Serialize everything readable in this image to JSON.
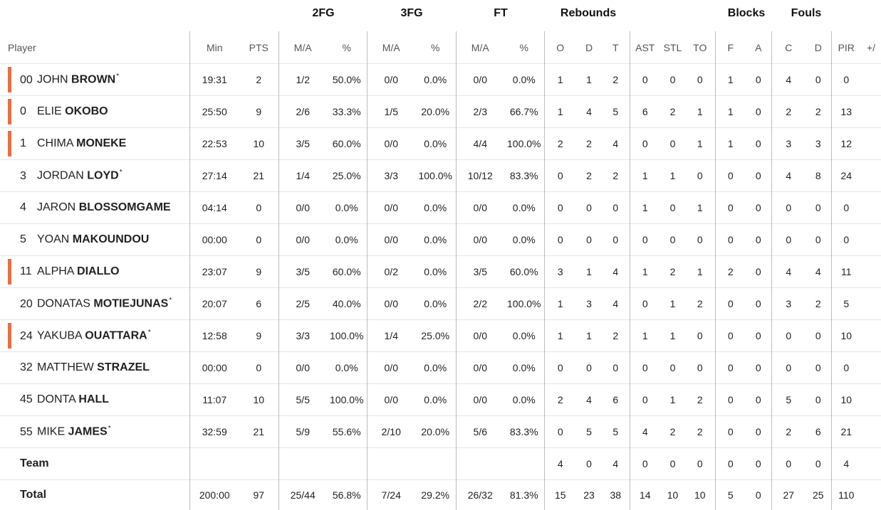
{
  "group_headers": {
    "fg2": "2FG",
    "fg3": "3FG",
    "ft": "FT",
    "rebounds": "Rebounds",
    "blocks": "Blocks",
    "fouls": "Fouls"
  },
  "columns": {
    "player": "Player",
    "min": "Min",
    "pts": "PTS",
    "fg2_ma": "M/A",
    "fg2_pct": "%",
    "fg3_ma": "M/A",
    "fg3_pct": "%",
    "ft_ma": "M/A",
    "ft_pct": "%",
    "reb_o": "O",
    "reb_d": "D",
    "reb_t": "T",
    "ast": "AST",
    "stl": "STL",
    "to": "TO",
    "blk_f": "F",
    "blk_a": "A",
    "foul_c": "C",
    "foul_d": "D",
    "pir": "PIR",
    "pm": "+/"
  },
  "accent_color": "#f26b3a",
  "players": [
    {
      "no": "00",
      "first": "JOHN",
      "last": "BROWN",
      "star": "*",
      "starter": true,
      "stats": [
        "19:31",
        "2",
        "1/2",
        "50.0%",
        "0/0",
        "0.0%",
        "0/0",
        "0.0%",
        "1",
        "1",
        "2",
        "0",
        "0",
        "0",
        "1",
        "0",
        "4",
        "0",
        "0"
      ]
    },
    {
      "no": "0",
      "first": "ELIE",
      "last": "OKOBO",
      "star": "",
      "starter": true,
      "stats": [
        "25:50",
        "9",
        "2/6",
        "33.3%",
        "1/5",
        "20.0%",
        "2/3",
        "66.7%",
        "1",
        "4",
        "5",
        "6",
        "2",
        "1",
        "1",
        "0",
        "2",
        "2",
        "13"
      ]
    },
    {
      "no": "1",
      "first": "CHIMA",
      "last": "MONEKE",
      "star": "",
      "starter": true,
      "stats": [
        "22:53",
        "10",
        "3/5",
        "60.0%",
        "0/0",
        "0.0%",
        "4/4",
        "100.0%",
        "2",
        "2",
        "4",
        "0",
        "0",
        "1",
        "1",
        "0",
        "3",
        "3",
        "12"
      ]
    },
    {
      "no": "3",
      "first": "JORDAN",
      "last": "LOYD",
      "star": "*",
      "starter": false,
      "stats": [
        "27:14",
        "21",
        "1/4",
        "25.0%",
        "3/3",
        "100.0%",
        "10/12",
        "83.3%",
        "0",
        "2",
        "2",
        "1",
        "1",
        "0",
        "0",
        "0",
        "4",
        "8",
        "24"
      ]
    },
    {
      "no": "4",
      "first": "JARON",
      "last": "BLOSSOMGAME",
      "star": "",
      "starter": false,
      "stats": [
        "04:14",
        "0",
        "0/0",
        "0.0%",
        "0/0",
        "0.0%",
        "0/0",
        "0.0%",
        "0",
        "0",
        "0",
        "1",
        "0",
        "1",
        "0",
        "0",
        "0",
        "0",
        "0"
      ]
    },
    {
      "no": "5",
      "first": "YOAN",
      "last": "MAKOUNDOU",
      "star": "",
      "starter": false,
      "stats": [
        "00:00",
        "0",
        "0/0",
        "0.0%",
        "0/0",
        "0.0%",
        "0/0",
        "0.0%",
        "0",
        "0",
        "0",
        "0",
        "0",
        "0",
        "0",
        "0",
        "0",
        "0",
        "0"
      ]
    },
    {
      "no": "11",
      "first": "ALPHA",
      "last": "DIALLO",
      "star": "",
      "starter": true,
      "stats": [
        "23:07",
        "9",
        "3/5",
        "60.0%",
        "0/2",
        "0.0%",
        "3/5",
        "60.0%",
        "3",
        "1",
        "4",
        "1",
        "2",
        "1",
        "2",
        "0",
        "4",
        "4",
        "11"
      ]
    },
    {
      "no": "20",
      "first": "DONATAS",
      "last": "MOTIEJUNAS",
      "star": "*",
      "starter": false,
      "stats": [
        "20:07",
        "6",
        "2/5",
        "40.0%",
        "0/0",
        "0.0%",
        "2/2",
        "100.0%",
        "1",
        "3",
        "4",
        "0",
        "1",
        "2",
        "0",
        "0",
        "3",
        "2",
        "5"
      ]
    },
    {
      "no": "24",
      "first": "YAKUBA",
      "last": "OUATTARA",
      "star": "*",
      "starter": true,
      "stats": [
        "12:58",
        "9",
        "3/3",
        "100.0%",
        "1/4",
        "25.0%",
        "0/0",
        "0.0%",
        "1",
        "1",
        "2",
        "1",
        "1",
        "0",
        "0",
        "0",
        "0",
        "0",
        "10"
      ]
    },
    {
      "no": "32",
      "first": "MATTHEW",
      "last": "STRAZEL",
      "star": "",
      "starter": false,
      "stats": [
        "00:00",
        "0",
        "0/0",
        "0.0%",
        "0/0",
        "0.0%",
        "0/0",
        "0.0%",
        "0",
        "0",
        "0",
        "0",
        "0",
        "0",
        "0",
        "0",
        "0",
        "0",
        "0"
      ]
    },
    {
      "no": "45",
      "first": "DONTA",
      "last": "HALL",
      "star": "",
      "starter": false,
      "stats": [
        "11:07",
        "10",
        "5/5",
        "100.0%",
        "0/0",
        "0.0%",
        "0/0",
        "0.0%",
        "2",
        "4",
        "6",
        "0",
        "1",
        "2",
        "0",
        "0",
        "5",
        "0",
        "10"
      ]
    },
    {
      "no": "55",
      "first": "MIKE",
      "last": "JAMES",
      "star": "*",
      "starter": false,
      "stats": [
        "32:59",
        "21",
        "5/9",
        "55.6%",
        "2/10",
        "20.0%",
        "5/6",
        "83.3%",
        "0",
        "5",
        "5",
        "4",
        "2",
        "2",
        "0",
        "0",
        "2",
        "6",
        "21"
      ]
    }
  ],
  "team": {
    "label": "Team",
    "stats": [
      "",
      "",
      "",
      "",
      "",
      "",
      "",
      "",
      "4",
      "0",
      "4",
      "0",
      "0",
      "0",
      "0",
      "0",
      "0",
      "0",
      "4"
    ]
  },
  "total": {
    "label": "Total",
    "stats": [
      "200:00",
      "97",
      "25/44",
      "56.8%",
      "7/24",
      "29.2%",
      "26/32",
      "81.3%",
      "15",
      "23",
      "38",
      "14",
      "10",
      "10",
      "5",
      "0",
      "27",
      "25",
      "110"
    ]
  }
}
